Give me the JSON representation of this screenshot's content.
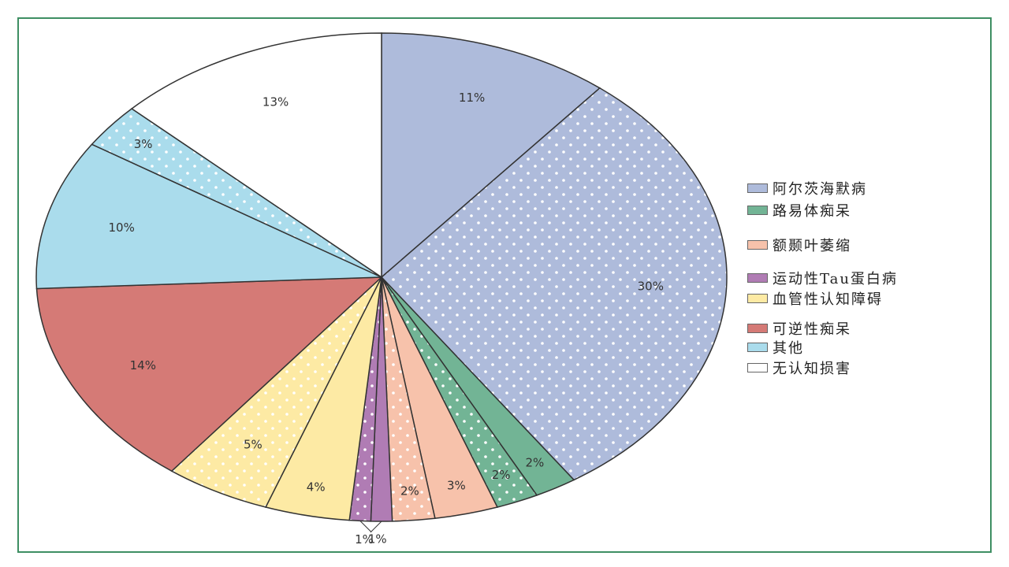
{
  "chart_data": {
    "type": "pie",
    "slices": [
      {
        "category": "阿尔茨海默病",
        "value": 11,
        "label": "11%",
        "color": "#aebbdb",
        "pattern": "solid"
      },
      {
        "category": "阿尔茨海默病",
        "value": 30,
        "label": "30%",
        "color": "#aebbdb",
        "pattern": "dots"
      },
      {
        "category": "路易体痴呆",
        "value": 2,
        "label": "2%",
        "color": "#72b495",
        "pattern": "solid"
      },
      {
        "category": "路易体痴呆",
        "value": 2,
        "label": "2%",
        "color": "#72b495",
        "pattern": "dots"
      },
      {
        "category": "额颞叶萎缩",
        "value": 3,
        "label": "3%",
        "color": "#f7c2ab",
        "pattern": "solid"
      },
      {
        "category": "额颞叶萎缩",
        "value": 2,
        "label": "2%",
        "color": "#f7c2ab",
        "pattern": "dots"
      },
      {
        "category": "运动性Tau蛋白病",
        "value": 1,
        "label": "1%",
        "color": "#b07cb4",
        "pattern": "solid"
      },
      {
        "category": "运动性Tau蛋白病",
        "value": 1,
        "label": "1%",
        "color": "#b07cb4",
        "pattern": "dots"
      },
      {
        "category": "血管性认知障碍",
        "value": 4,
        "label": "4%",
        "color": "#fdeaa4",
        "pattern": "solid"
      },
      {
        "category": "血管性认知障碍",
        "value": 5,
        "label": "5%",
        "color": "#fdeaa4",
        "pattern": "dots"
      },
      {
        "category": "可逆性痴呆",
        "value": 14,
        "label": "14%",
        "color": "#d57a76",
        "pattern": "solid"
      },
      {
        "category": "其他",
        "value": 10,
        "label": "10%",
        "color": "#aadcec",
        "pattern": "solid"
      },
      {
        "category": "其他",
        "value": 3,
        "label": "3%",
        "color": "#aadcec",
        "pattern": "dots"
      },
      {
        "category": "无认知损害",
        "value": 13,
        "label": "13%",
        "color": "#ffffff",
        "pattern": "solid"
      }
    ],
    "legend": [
      {
        "label": "阿尔茨海默病",
        "color": "#aebbdb"
      },
      {
        "label": "路易体痴呆",
        "color": "#72b495"
      },
      {
        "label": "额颞叶萎缩",
        "color": "#f7c2ab"
      },
      {
        "label": "运动性Tau蛋白病",
        "color": "#b07cb4"
      },
      {
        "label": "血管性认知障碍",
        "color": "#fdeaa4"
      },
      {
        "label": "可逆性痴呆",
        "color": "#d57a76"
      },
      {
        "label": "其他",
        "color": "#aadcec"
      },
      {
        "label": "无认知损害",
        "color": "#ffffff"
      }
    ],
    "legend_position": "right",
    "start_angle_deg": 0,
    "direction": "clockwise"
  },
  "colors": {
    "frame_border": "#3e8f63",
    "slice_stroke": "#333333"
  }
}
